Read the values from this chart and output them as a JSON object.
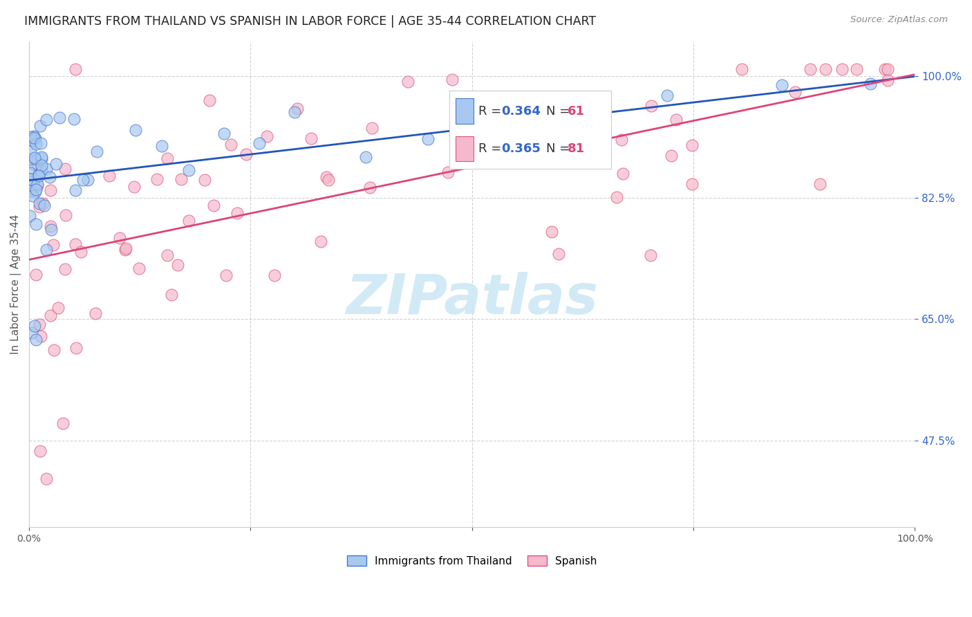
{
  "title": "IMMIGRANTS FROM THAILAND VS SPANISH IN LABOR FORCE | AGE 35-44 CORRELATION CHART",
  "source": "Source: ZipAtlas.com",
  "ylabel": "In Labor Force | Age 35-44",
  "xlim": [
    0.0,
    1.0
  ],
  "ylim": [
    0.35,
    1.05
  ],
  "ytick_vals": [
    0.475,
    0.65,
    0.825,
    1.0
  ],
  "ytick_labels": [
    "47.5%",
    "65.0%",
    "82.5%",
    "100.0%"
  ],
  "grid_color": "#cccccc",
  "background_color": "#ffffff",
  "blue_fill": "#a8c8f0",
  "blue_edge": "#4477cc",
  "pink_fill": "#f5b8cc",
  "pink_edge": "#dd5577",
  "blue_line": "#2255bb",
  "pink_line": "#dd4477",
  "R_blue": "0.364",
  "N_blue": "61",
  "R_pink": "0.365",
  "N_pink": "81",
  "R_color": "#3366cc",
  "N_color": "#dd4477",
  "legend_text_color": "#333333",
  "title_color": "#222222",
  "source_color": "#888888",
  "ylabel_color": "#555555",
  "ytick_color": "#3366cc",
  "xtick_color": "#555555",
  "watermark_color": "#cde8f5",
  "watermark_alpha": 0.9
}
